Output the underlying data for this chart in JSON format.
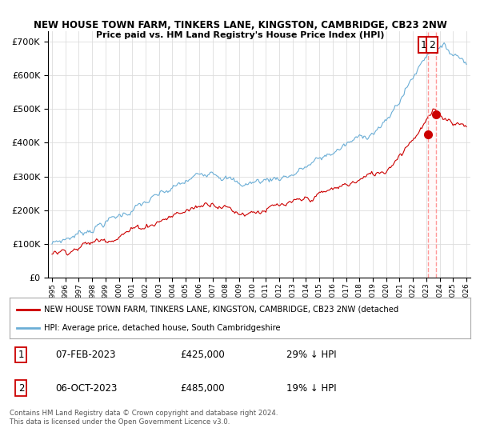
{
  "title": "NEW HOUSE TOWN FARM, TINKERS LANE, KINGSTON, CAMBRIDGE, CB23 2NW",
  "subtitle": "Price paid vs. HM Land Registry's House Price Index (HPI)",
  "ylim": [
    0,
    730000
  ],
  "yticks": [
    0,
    100000,
    200000,
    300000,
    400000,
    500000,
    600000,
    700000
  ],
  "hpi_color": "#6baed6",
  "price_color": "#cc0000",
  "dashed_color": "#ff9999",
  "shade_color": "#ffe0e0",
  "sale1_date": "07-FEB-2023",
  "sale1_price": 425000,
  "sale1_label": "29% ↓ HPI",
  "sale1_x": 2023.1,
  "sale2_date": "06-OCT-2023",
  "sale2_price": 485000,
  "sale2_label": "19% ↓ HPI",
  "sale2_x": 2023.75,
  "legend_property": "NEW HOUSE TOWN FARM, TINKERS LANE, KINGSTON, CAMBRIDGE, CB23 2NW (detached",
  "legend_hpi": "HPI: Average price, detached house, South Cambridgeshire",
  "footnote": "Contains HM Land Registry data © Crown copyright and database right 2024.\nThis data is licensed under the Open Government Licence v3.0.",
  "xmin": 1995,
  "xmax": 2026
}
